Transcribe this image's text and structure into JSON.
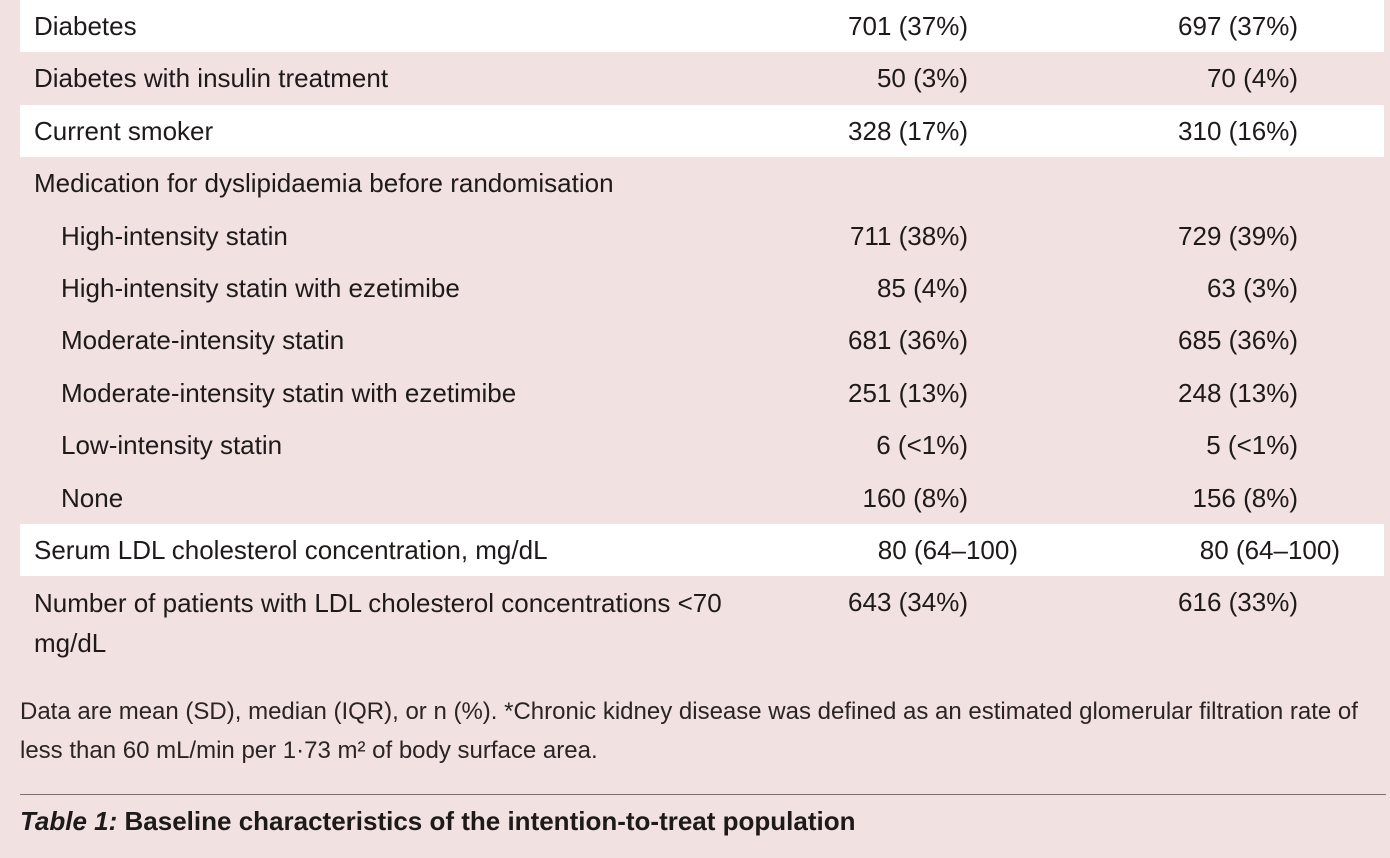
{
  "rows": [
    {
      "label": "Diabetes",
      "v1": "701 (37%)",
      "v2": "697 (37%)"
    },
    {
      "label": "Diabetes with insulin treatment",
      "v1": "50 (3%)",
      "v2": "70 (4%)"
    },
    {
      "label": "Current smoker",
      "v1": "328 (17%)",
      "v2": "310 (16%)"
    },
    {
      "label": "Medication for dyslipidaemia before randomisation",
      "v1": "",
      "v2": ""
    },
    {
      "label": "High-intensity statin",
      "v1": "711 (38%)",
      "v2": "729 (39%)"
    },
    {
      "label": "High-intensity statin with ezetimibe",
      "v1": "85 (4%)",
      "v2": "63 (3%)"
    },
    {
      "label": "Moderate-intensity statin",
      "v1": "681 (36%)",
      "v2": "685 (36%)"
    },
    {
      "label": "Moderate-intensity statin with ezetimibe",
      "v1": "251 (13%)",
      "v2": "248 (13%)"
    },
    {
      "label": "Low-intensity statin",
      "v1": "6 (<1%)",
      "v2": "5 (<1%)"
    },
    {
      "label": "None",
      "v1": "160 (8%)",
      "v2": "156 (8%)"
    },
    {
      "label": "Serum LDL cholesterol concentration, mg/dL",
      "v1": "80 (64–100)",
      "v2": "80 (64–100)"
    },
    {
      "label": "Number of patients with LDL cholesterol concentrations <70 mg/dL",
      "v1": "643 (34%)",
      "v2": "616 (33%)"
    }
  ],
  "footnote": "Data are mean (SD), median (IQR), or n (%). *Chronic kidney disease was defined as an estimated glomerular filtration rate of less than 60 mL/min per 1·73 m² of body surface area.",
  "caption": {
    "prefix": "Table 1:",
    "text": " Baseline characteristics of the intention-to-treat population"
  }
}
